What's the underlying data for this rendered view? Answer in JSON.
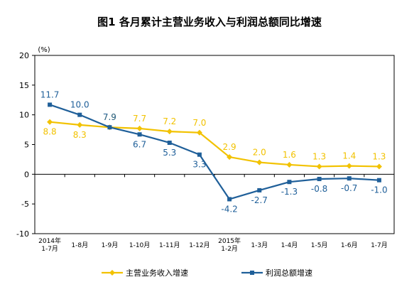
{
  "chart_data": {
    "type": "line",
    "title": "图1  各月累计主营业务收入与利润总额同比增速",
    "unit_label": "(%)",
    "categories": [
      [
        "2014年",
        "1-7月"
      ],
      [
        "1-8月"
      ],
      [
        "1-9月"
      ],
      [
        "1-10月"
      ],
      [
        "1-11月"
      ],
      [
        "1-12月"
      ],
      [
        "2015年",
        "1-2月"
      ],
      [
        "1-3月"
      ],
      [
        "1-4月"
      ],
      [
        "1-5月"
      ],
      [
        "1-6月"
      ],
      [
        "1-7月"
      ]
    ],
    "ylim": [
      -10,
      20
    ],
    "yticks": [
      -10,
      -5,
      0,
      5,
      10,
      15,
      20
    ],
    "grid": false,
    "legend_position": "bottom",
    "series": [
      {
        "name": "主营业务收入增速",
        "color": "#f2c200",
        "marker": "diamond",
        "values": [
          8.8,
          8.3,
          7.9,
          7.7,
          7.2,
          7.0,
          2.9,
          2.0,
          1.6,
          1.3,
          1.4,
          1.3
        ],
        "labels": [
          "8.8",
          "8.3",
          "7.9",
          "7.7",
          "7.2",
          "7.0",
          "2.9",
          "2.0",
          "1.6",
          "1.3",
          "1.4",
          "1.3"
        ]
      },
      {
        "name": "利润总额增速",
        "color": "#1f5f99",
        "marker": "square",
        "values": [
          11.7,
          10.0,
          7.9,
          6.7,
          5.3,
          3.3,
          -4.2,
          -2.7,
          -1.3,
          -0.8,
          -0.7,
          -1.0
        ],
        "labels": [
          "11.7",
          "10.0",
          "7.9",
          "6.7",
          "5.3",
          "3.3",
          "-4.2",
          "-2.7",
          "-1.3",
          "-0.8",
          "-0.7",
          "-1.0"
        ]
      }
    ]
  }
}
